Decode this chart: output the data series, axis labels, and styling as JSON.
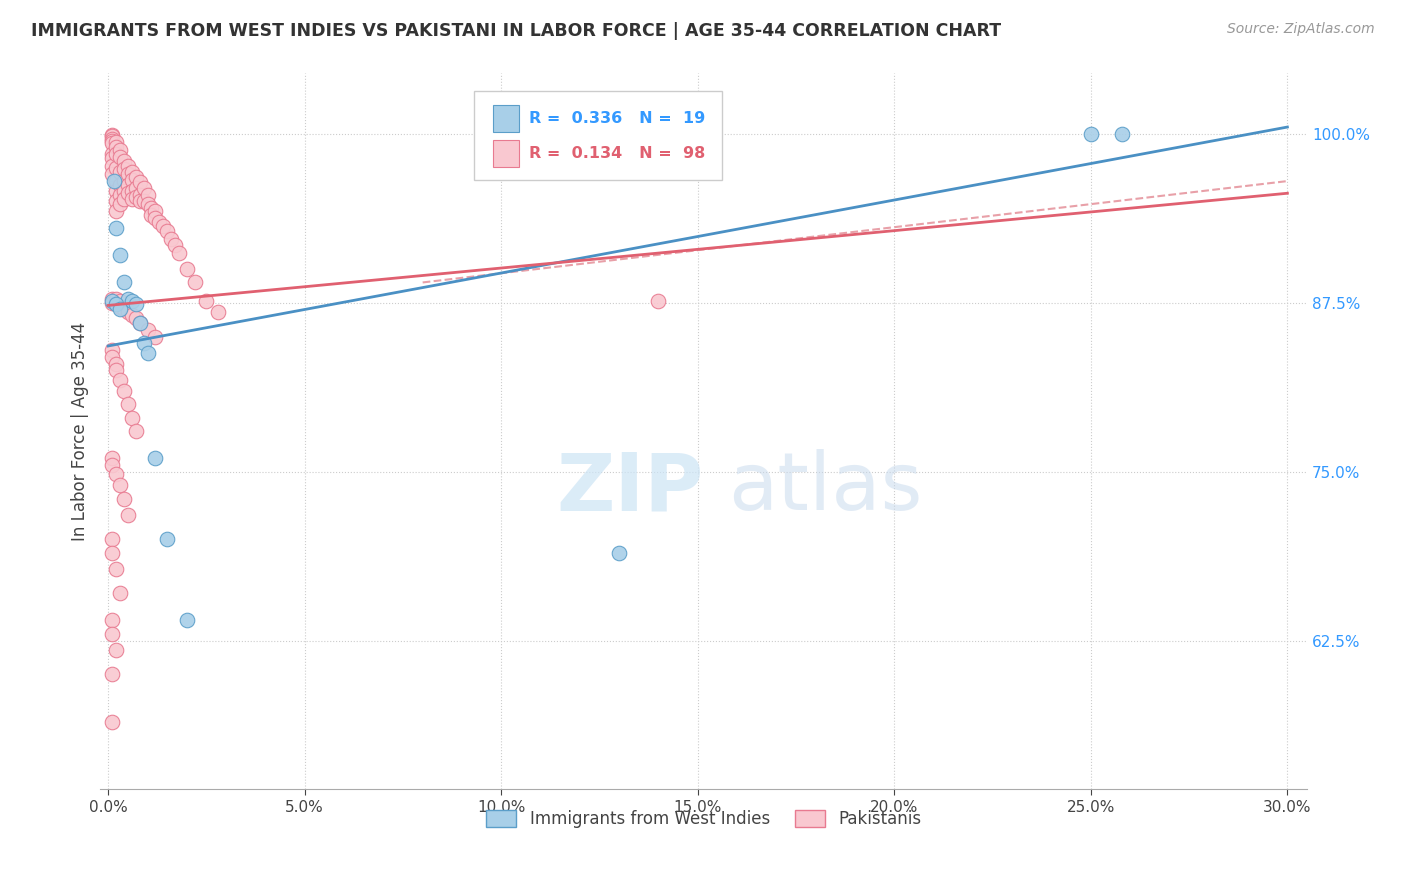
{
  "title": "IMMIGRANTS FROM WEST INDIES VS PAKISTANI IN LABOR FORCE | AGE 35-44 CORRELATION CHART",
  "source": "Source: ZipAtlas.com",
  "ylabel": "In Labor Force | Age 35-44",
  "xlim": [
    -0.002,
    0.305
  ],
  "ylim": [
    0.515,
    1.045
  ],
  "xtick_labels": [
    "0.0%",
    "5.0%",
    "10.0%",
    "15.0%",
    "20.0%",
    "25.0%",
    "30.0%"
  ],
  "xtick_values": [
    0.0,
    0.05,
    0.1,
    0.15,
    0.2,
    0.25,
    0.3
  ],
  "ytick_labels": [
    "62.5%",
    "75.0%",
    "87.5%",
    "100.0%"
  ],
  "ytick_values": [
    0.625,
    0.75,
    0.875,
    1.0
  ],
  "legend_r_west_indies": "0.336",
  "legend_n_west_indies": "19",
  "legend_r_pakistani": "0.134",
  "legend_n_pakistani": "98",
  "blue_color": "#a8cfe8",
  "blue_edge_color": "#5b9ec9",
  "pink_color": "#f9c8d0",
  "pink_edge_color": "#e87a90",
  "blue_line_color": "#4a90c4",
  "pink_line_color": "#e06070",
  "dashed_line_color": "#e8a0a8",
  "west_indies_x": [
    0.0015,
    0.002,
    0.003,
    0.004,
    0.005,
    0.006,
    0.007,
    0.008,
    0.009,
    0.01,
    0.012,
    0.015,
    0.02,
    0.001,
    0.002,
    0.003,
    0.25,
    0.258,
    0.13
  ],
  "west_indies_y": [
    0.965,
    0.93,
    0.91,
    0.89,
    0.878,
    0.876,
    0.874,
    0.86,
    0.845,
    0.838,
    0.76,
    0.7,
    0.64,
    0.876,
    0.874,
    0.87,
    1.0,
    1.0,
    0.69
  ],
  "pakistani_x": [
    0.001,
    0.001,
    0.001,
    0.001,
    0.001,
    0.001,
    0.001,
    0.001,
    0.001,
    0.002,
    0.002,
    0.002,
    0.002,
    0.002,
    0.002,
    0.002,
    0.002,
    0.003,
    0.003,
    0.003,
    0.003,
    0.003,
    0.003,
    0.004,
    0.004,
    0.004,
    0.004,
    0.004,
    0.005,
    0.005,
    0.005,
    0.005,
    0.006,
    0.006,
    0.006,
    0.006,
    0.007,
    0.007,
    0.007,
    0.008,
    0.008,
    0.008,
    0.009,
    0.009,
    0.01,
    0.01,
    0.011,
    0.011,
    0.012,
    0.012,
    0.013,
    0.014,
    0.015,
    0.016,
    0.017,
    0.018,
    0.02,
    0.022,
    0.025,
    0.028,
    0.001,
    0.001,
    0.002,
    0.002,
    0.003,
    0.003,
    0.004,
    0.005,
    0.006,
    0.007,
    0.008,
    0.01,
    0.012,
    0.001,
    0.001,
    0.002,
    0.002,
    0.003,
    0.004,
    0.005,
    0.006,
    0.007,
    0.001,
    0.001,
    0.002,
    0.003,
    0.004,
    0.005,
    0.001,
    0.001,
    0.002,
    0.003,
    0.001,
    0.001,
    0.002,
    0.001,
    0.001,
    0.14
  ],
  "pakistani_y": [
    0.999,
    0.998,
    0.996,
    0.995,
    0.993,
    0.985,
    0.982,
    0.976,
    0.97,
    0.994,
    0.99,
    0.985,
    0.975,
    0.965,
    0.958,
    0.95,
    0.943,
    0.988,
    0.983,
    0.972,
    0.962,
    0.955,
    0.948,
    0.98,
    0.974,
    0.965,
    0.958,
    0.952,
    0.976,
    0.97,
    0.962,
    0.956,
    0.972,
    0.966,
    0.958,
    0.952,
    0.968,
    0.96,
    0.953,
    0.964,
    0.955,
    0.95,
    0.96,
    0.95,
    0.955,
    0.948,
    0.945,
    0.94,
    0.943,
    0.938,
    0.935,
    0.932,
    0.928,
    0.922,
    0.918,
    0.912,
    0.9,
    0.89,
    0.876,
    0.868,
    0.878,
    0.875,
    0.878,
    0.874,
    0.876,
    0.872,
    0.87,
    0.868,
    0.866,
    0.864,
    0.86,
    0.855,
    0.85,
    0.84,
    0.835,
    0.83,
    0.825,
    0.818,
    0.81,
    0.8,
    0.79,
    0.78,
    0.76,
    0.755,
    0.748,
    0.74,
    0.73,
    0.718,
    0.7,
    0.69,
    0.678,
    0.66,
    0.64,
    0.63,
    0.618,
    0.6,
    0.565,
    0.876
  ]
}
